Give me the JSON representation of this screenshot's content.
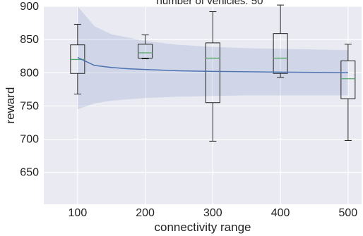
{
  "chart_data": {
    "type": "box",
    "title": "number of vehicles: 50",
    "xlabel": "connectivity range",
    "ylabel": "reward",
    "x_ticks": [
      100,
      200,
      300,
      400,
      500
    ],
    "y_ticks": [
      650,
      700,
      750,
      800,
      850,
      900
    ],
    "xlim": [
      50,
      520
    ],
    "ylim": [
      602,
      900
    ],
    "grid": true,
    "boxes": [
      {
        "x": 100,
        "whisker_low": 768,
        "q1": 799,
        "median": 820,
        "q3": 842,
        "whisker_high": 873
      },
      {
        "x": 200,
        "whisker_low": 821,
        "q1": 822,
        "median": 830,
        "q3": 843,
        "whisker_high": 857
      },
      {
        "x": 300,
        "whisker_low": 697,
        "q1": 755,
        "median": 822,
        "q3": 845,
        "whisker_high": 892
      },
      {
        "x": 400,
        "whisker_low": 793,
        "q1": 799,
        "median": 822,
        "q3": 859,
        "whisker_high": 902
      },
      {
        "x": 500,
        "whisker_low": 698,
        "q1": 761,
        "median": 791,
        "q3": 818,
        "whisker_high": 843
      }
    ],
    "fit_curve": {
      "x": [
        100,
        125,
        150,
        175,
        200,
        250,
        300,
        350,
        400,
        450,
        500
      ],
      "y": [
        823,
        811,
        808,
        806,
        805,
        803,
        802,
        801.5,
        801,
        800.5,
        800
      ]
    },
    "confidence_band": {
      "x": [
        100,
        125,
        150,
        200,
        250,
        300,
        350,
        400,
        450,
        500
      ],
      "lower": [
        745,
        754,
        758,
        762,
        764,
        765,
        766,
        766,
        766,
        766
      ],
      "upper": [
        900,
        870,
        858,
        848,
        842,
        839,
        837,
        836,
        835,
        834
      ]
    },
    "colors": {
      "background": "#eaeaf2",
      "grid": "#ffffff",
      "fit_line": "#4c72b0",
      "band": "#4c72b0",
      "box_edge": "#222222",
      "median": "#55a868"
    }
  }
}
